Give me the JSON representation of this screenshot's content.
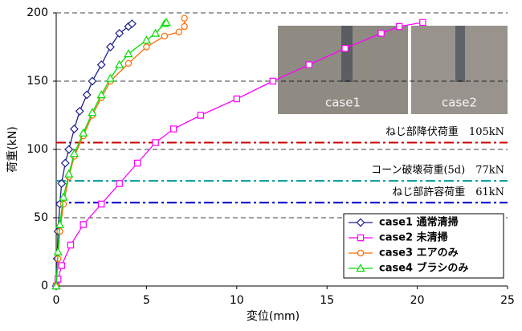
{
  "chart_data": {
    "type": "line",
    "xlabel": "変位(mm)",
    "ylabel": "荷重(kN)",
    "xlim": [
      0,
      25
    ],
    "xticks": [
      0,
      5,
      10,
      15,
      20,
      25
    ],
    "ylim": [
      0,
      200
    ],
    "yticks": [
      0,
      50,
      100,
      150,
      200
    ],
    "grid": true,
    "legend": "lower right",
    "inset_labels": [
      "case1",
      "case2"
    ],
    "reference_lines": [
      {
        "value": 105,
        "label": "ねじ部降伏荷重　105kN",
        "color": "#cc0000"
      },
      {
        "value": 77,
        "label": "コーン破壊荷重(5d)　77kN",
        "color": "#009999"
      },
      {
        "value": 61,
        "label": "ねじ部許容荷重　61kN",
        "color": "#0000cc"
      }
    ],
    "series": [
      {
        "name": "case1 通常清掃",
        "color": "#1f1f8f",
        "marker": "diamond",
        "x": [
          0,
          0.05,
          0.1,
          0.2,
          0.3,
          0.5,
          0.7,
          1.0,
          1.3,
          1.7,
          2.0,
          2.5,
          3.0,
          3.5,
          4.0,
          4.2
        ],
        "values": [
          0,
          20,
          40,
          60,
          75,
          90,
          100,
          115,
          128,
          140,
          150,
          162,
          175,
          185,
          190,
          192
        ]
      },
      {
        "name": "case2 未清掃",
        "color": "#ff00ff",
        "marker": "square",
        "x": [
          0,
          0.1,
          0.3,
          0.8,
          1.5,
          2.5,
          3.5,
          4.5,
          5.5,
          6.5,
          8,
          10,
          12,
          14,
          16,
          18,
          19,
          20.3
        ],
        "values": [
          0,
          5,
          15,
          30,
          45,
          60,
          75,
          90,
          105,
          115,
          125,
          137,
          150,
          162,
          174,
          185,
          190,
          193
        ]
      },
      {
        "name": "case3 エアのみ",
        "color": "#ff6a00",
        "marker": "circle",
        "x": [
          0,
          0.1,
          0.2,
          0.4,
          0.7,
          1,
          1.5,
          2,
          2.5,
          3,
          4,
          5,
          6,
          6.8,
          7.1,
          7.1
        ],
        "values": [
          0,
          20,
          40,
          60,
          80,
          95,
          110,
          125,
          138,
          150,
          163,
          175,
          183,
          186,
          190,
          196
        ]
      },
      {
        "name": "case4 ブラシのみ",
        "color": "#00dd00",
        "marker": "triangle",
        "x": [
          0,
          0.1,
          0.2,
          0.4,
          0.7,
          1,
          1.5,
          2,
          2.5,
          3,
          3.5,
          4,
          5,
          5.5,
          6.0,
          6.1
        ],
        "values": [
          0,
          25,
          45,
          65,
          82,
          97,
          112,
          127,
          140,
          152,
          162,
          170,
          180,
          185,
          192,
          193
        ]
      }
    ]
  }
}
